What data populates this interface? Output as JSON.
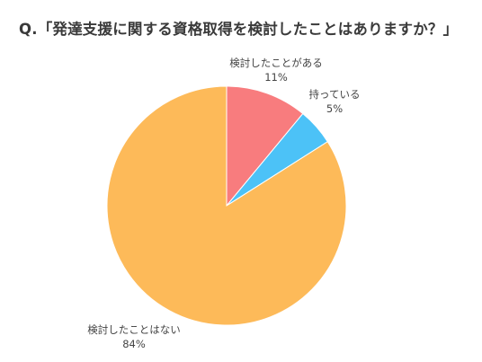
{
  "chart_data": {
    "type": "pie",
    "title": "Q.「発達支援に関する資格取得を検討したことはありますか？」",
    "slices": [
      {
        "label": "検討したことがある",
        "value": 11,
        "value_label": "11%",
        "color": "#F87C7E"
      },
      {
        "label": "持っている",
        "value": 5,
        "value_label": "5%",
        "color": "#4CC2F7"
      },
      {
        "label": "検討したことはない",
        "value": 84,
        "value_label": "84%",
        "color": "#FDBA59"
      }
    ],
    "start_angle": "12 o'clock",
    "direction": "clockwise",
    "legend": "none"
  }
}
